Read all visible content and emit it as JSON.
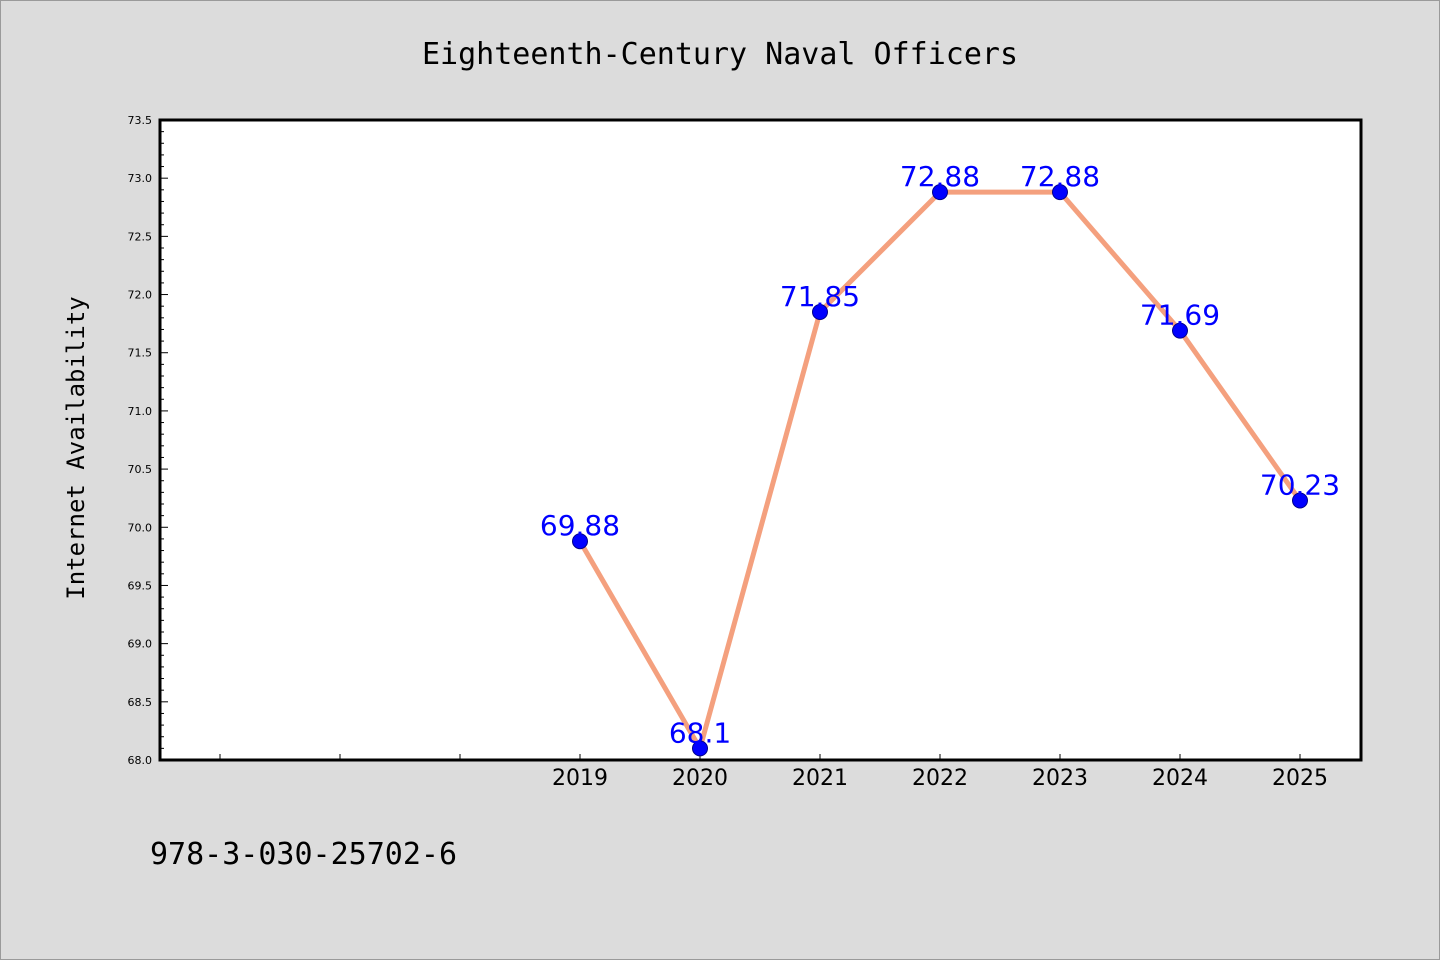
{
  "chart_data": {
    "type": "line",
    "title": "Eighteenth-Century Naval Officers",
    "xlabel": "",
    "ylabel": "Internet Availability",
    "x_categories": [
      "",
      "",
      "",
      "2019",
      "2020",
      "2021",
      "2022",
      "2023",
      "2024",
      "2025"
    ],
    "series": [
      {
        "x": [
          "2019",
          "2020",
          "2021",
          "2022",
          "2023",
          "2024",
          "2025"
        ],
        "values": [
          69.88,
          68.1,
          71.85,
          72.88,
          72.88,
          71.69,
          70.23
        ],
        "labels": [
          "69.88",
          "68.1",
          "71.85",
          "72.88",
          "72.88",
          "71.69",
          "70.23"
        ]
      }
    ],
    "ylim": [
      68.0,
      73.5
    ],
    "yticks": [
      "68.0",
      "68.5",
      "69.0",
      "69.5",
      "70.0",
      "70.5",
      "71.0",
      "71.5",
      "72.0",
      "72.5",
      "73.0",
      "73.5"
    ],
    "grid": false,
    "legend": "none",
    "colors": {
      "line": "#f4a07e",
      "marker": "#0000ff",
      "label": "#0000ff",
      "background": "#dcdcdc",
      "plot_background": "#ffffff"
    }
  },
  "footer_text": "978-3-030-25702-6"
}
